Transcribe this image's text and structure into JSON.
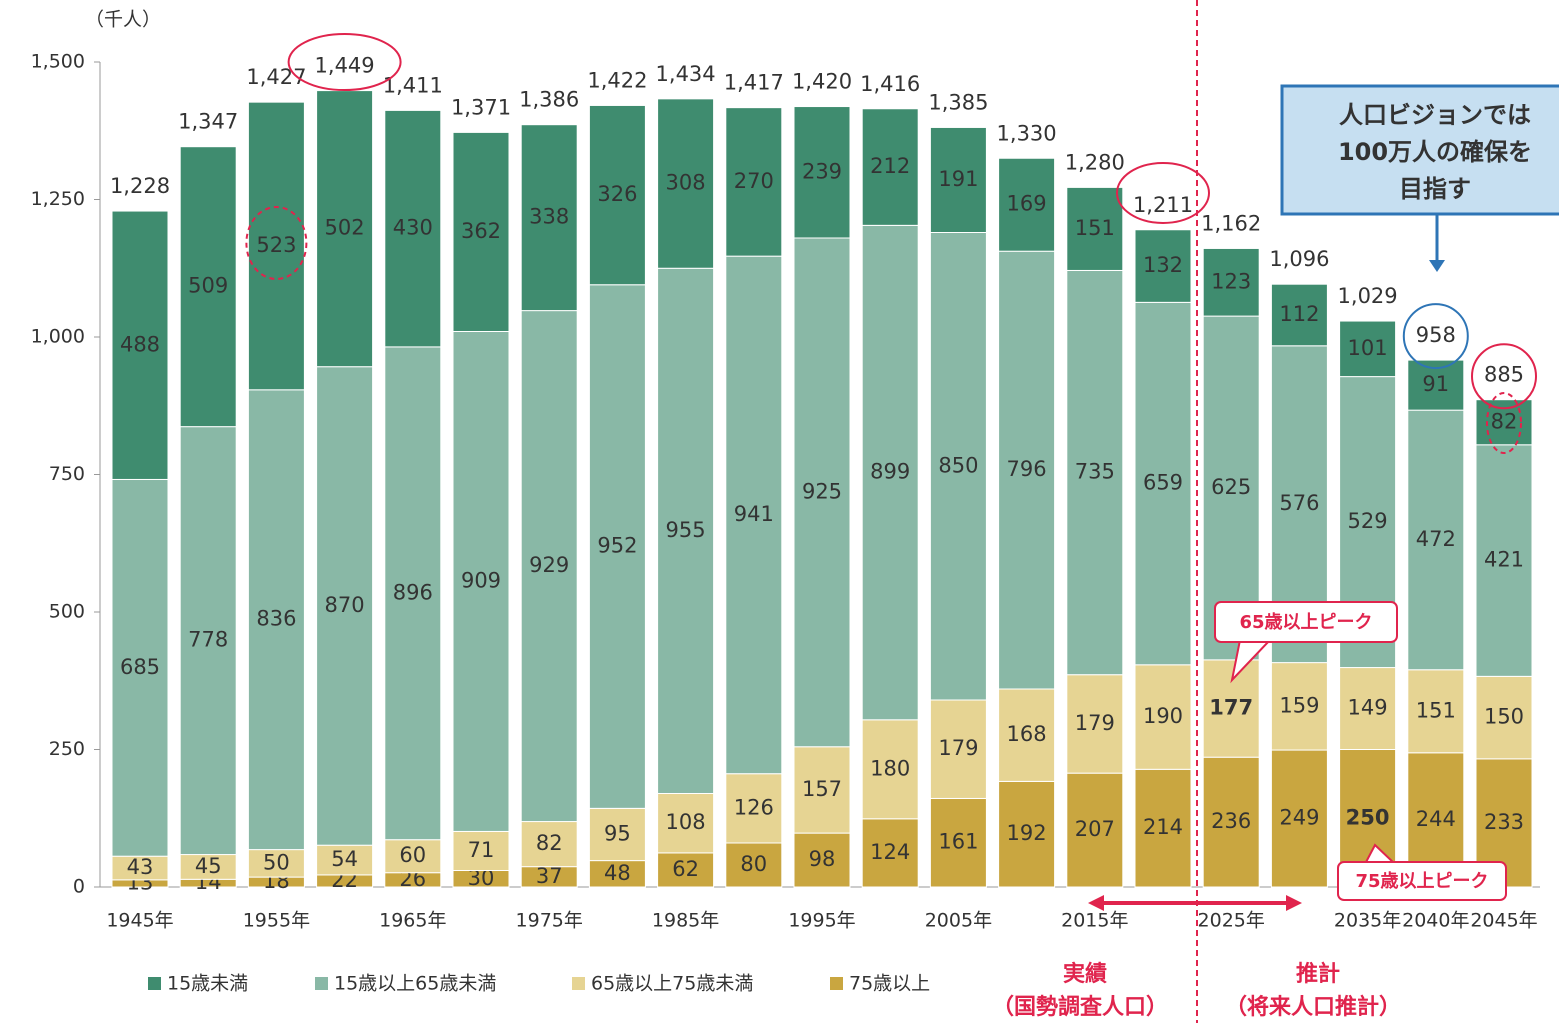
{
  "chart_data": {
    "type": "stacked_bar",
    "unit_label": "（千人）",
    "categories": [
      "1945年",
      null,
      "1955年",
      null,
      "1965年",
      null,
      "1975年",
      null,
      "1985年",
      null,
      "1995年",
      null,
      "2005年",
      null,
      "2015年",
      null,
      "2025年",
      null,
      "2035年",
      "2040年",
      "2045年"
    ],
    "series": [
      {
        "name": "75歳以上",
        "color": "#c9a640",
        "values": [
          13,
          14,
          18,
          22,
          26,
          30,
          37,
          48,
          62,
          80,
          98,
          124,
          161,
          192,
          207,
          214,
          236,
          249,
          250,
          244,
          233
        ]
      },
      {
        "name": "65歳以上75歳未満",
        "color": "#e6d493",
        "values": [
          43,
          45,
          50,
          54,
          60,
          71,
          82,
          95,
          108,
          126,
          157,
          180,
          179,
          168,
          179,
          190,
          177,
          159,
          149,
          151,
          150
        ]
      },
      {
        "name": "15歳以上65歳未満",
        "color": "#89b8a6",
        "values": [
          685,
          778,
          836,
          870,
          896,
          909,
          929,
          952,
          955,
          941,
          925,
          899,
          850,
          796,
          735,
          659,
          625,
          576,
          529,
          472,
          421
        ]
      },
      {
        "name": "15歳未満",
        "color": "#3f8c6f",
        "values": [
          488,
          509,
          523,
          502,
          430,
          362,
          338,
          326,
          308,
          270,
          239,
          212,
          191,
          169,
          151,
          132,
          123,
          112,
          101,
          91,
          82
        ]
      }
    ],
    "totals": {
      "values": [
        1228,
        1347,
        1427,
        1449,
        1411,
        1371,
        1386,
        1422,
        1434,
        1417,
        1420,
        1416,
        1385,
        1330,
        1280,
        1211,
        1162,
        1096,
        1029,
        958,
        885
      ],
      "value_labels": [
        "1,228",
        "1,347",
        "1,427",
        "1,449",
        "1,411",
        "1,371",
        "1,386",
        "1,422",
        "1,434",
        "1,417",
        "1,420",
        "1,416",
        "1,385",
        "1,330",
        "1,280",
        "1,211",
        "1,162",
        "1,096",
        "1,029",
        "958",
        "885"
      ]
    },
    "ylim": [
      0,
      1500
    ],
    "yticks": [
      0,
      250,
      500,
      750,
      {
        "value": 1000,
        "label": "1,000"
      },
      {
        "value": 1250,
        "label": "1,250"
      },
      {
        "value": 1500,
        "label": "1,500"
      }
    ],
    "annotations": {
      "actual": "実績",
      "actual_sub": "（国勢調査人口）",
      "projection": "推計",
      "projection_sub": "（将来人口推計）",
      "peak65": "65歳以上ピーク",
      "peak75": "75歳以上ピーク",
      "vision": [
        "人口ビジョンでは",
        "100万人の確保を",
        "目指す"
      ]
    }
  }
}
